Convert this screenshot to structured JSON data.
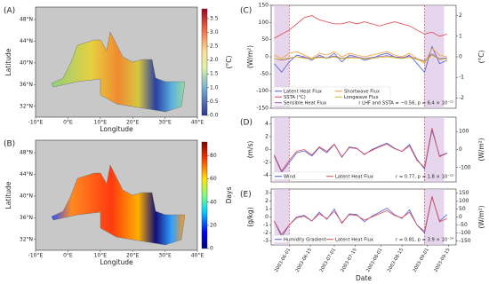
{
  "chart_data": [
    {
      "type": "map",
      "panel_label": "(A)",
      "xlabel": "Longitude",
      "ylabel": "Latitude",
      "xlim": [
        -10,
        40
      ],
      "ylim": [
        30,
        50.3
      ],
      "xticks": [
        {
          "value": -10,
          "label": "-10°E"
        },
        {
          "value": 0,
          "label": "0°E"
        },
        {
          "value": 10,
          "label": "10°E"
        },
        {
          "value": 20,
          "label": "20°E"
        },
        {
          "value": 30,
          "label": "30°E"
        },
        {
          "value": 40,
          "label": "40°E"
        }
      ],
      "yticks": [
        {
          "value": 32,
          "label": "32°N"
        },
        {
          "value": 36,
          "label": "36°N"
        },
        {
          "value": 40,
          "label": "40°N"
        },
        {
          "value": 44,
          "label": "44°N"
        },
        {
          "value": 48,
          "label": "48°N"
        }
      ],
      "colorbar": {
        "label": "(°C)",
        "lim": [
          0,
          3.85
        ],
        "ticks": [
          {
            "value": 0,
            "label": "0.0"
          },
          0.5,
          {
            "value": 1,
            "label": "1.0"
          },
          1.5,
          {
            "value": 2,
            "label": "2.0"
          },
          2.5,
          {
            "value": 3,
            "label": "3.0"
          },
          3.5
        ],
        "colormap": "redyellowblue"
      }
    },
    {
      "type": "map",
      "panel_label": "(B)",
      "xlabel": "Longitude",
      "ylabel": "Latitude",
      "xlim": [
        -10,
        40
      ],
      "ylim": [
        30,
        50.3
      ],
      "xticks": [
        {
          "value": -10,
          "label": "-10°E"
        },
        {
          "value": 0,
          "label": "0°E"
        },
        {
          "value": 10,
          "label": "10°E"
        },
        {
          "value": 20,
          "label": "20°E"
        },
        {
          "value": 30,
          "label": "30°E"
        },
        {
          "value": 40,
          "label": "40°E"
        }
      ],
      "yticks": [
        {
          "value": 32,
          "label": "32°N"
        },
        {
          "value": 36,
          "label": "36°N"
        },
        {
          "value": 40,
          "label": "40°N"
        },
        {
          "value": 44,
          "label": "44°N"
        },
        {
          "value": 48,
          "label": "48°N"
        }
      ],
      "colorbar": {
        "label": "Days",
        "lim": [
          0,
          92
        ],
        "ticks": [
          0,
          20,
          40,
          60,
          80
        ],
        "colormap": "jet"
      }
    },
    {
      "type": "line",
      "panel_label": "(C)",
      "ylabel": "(W/m²)",
      "y2label": "(°C)",
      "x": [
        "2003-05-22",
        "2003-05-27",
        "2003-06-01",
        "2003-06-06",
        "2003-06-11",
        "2003-06-16",
        "2003-06-21",
        "2003-06-26",
        "2003-07-01",
        "2003-07-06",
        "2003-07-11",
        "2003-07-16",
        "2003-07-21",
        "2003-07-26",
        "2003-07-31",
        "2003-08-05",
        "2003-08-10",
        "2003-08-15",
        "2003-08-20",
        "2003-08-25",
        "2003-08-30",
        "2003-09-04",
        "2003-09-09",
        "2003-09-14"
      ],
      "xlim": [
        "2003-05-20",
        "2003-09-20"
      ],
      "ylim": [
        -150,
        150
      ],
      "yticks": [
        -150,
        -100,
        -50,
        0,
        50,
        100,
        150
      ],
      "y2lim": [
        -2.5,
        2.5
      ],
      "y2ticks": [
        -2,
        -1,
        0,
        1,
        2
      ],
      "shaded_spans": [
        [
          "2003-05-22",
          "2003-06-01"
        ],
        [
          "2003-08-30",
          "2003-09-12"
        ]
      ],
      "series": [
        {
          "name": "Latent Heat Flux",
          "color": "#4f5fd8",
          "values": [
            -20,
            -45,
            -15,
            5,
            0,
            -10,
            5,
            -5,
            10,
            -15,
            5,
            0,
            -10,
            -5,
            5,
            10,
            0,
            -5,
            5,
            -20,
            -45,
            30,
            -20,
            -10
          ]
        },
        {
          "name": "SSTA (°C)",
          "color": "#e0474c",
          "axis": "y2",
          "values": [
            0.9,
            1.1,
            1.3,
            1.6,
            1.9,
            2.0,
            1.8,
            1.7,
            1.6,
            1.6,
            1.7,
            1.6,
            1.7,
            1.6,
            1.5,
            1.6,
            1.7,
            1.6,
            1.5,
            1.3,
            1.1,
            1.2,
            1.0,
            1.1
          ]
        },
        {
          "name": "Sensible Heat Flux",
          "color": "#9b59b6",
          "values": [
            -5,
            -10,
            -5,
            0,
            -2,
            -4,
            0,
            -3,
            2,
            -5,
            0,
            -1,
            -4,
            -2,
            1,
            3,
            0,
            -2,
            1,
            -6,
            -12,
            8,
            -6,
            -3
          ]
        },
        {
          "name": "Shortwave Flux",
          "color": "#f0a030",
          "values": [
            5,
            -5,
            10,
            15,
            5,
            -5,
            10,
            5,
            15,
            0,
            10,
            5,
            0,
            5,
            10,
            15,
            5,
            0,
            10,
            -5,
            -20,
            25,
            5,
            0
          ]
        },
        {
          "name": "Longwave Flux",
          "color": "#c8c020",
          "values": [
            -5,
            -8,
            -3,
            0,
            -5,
            -6,
            -2,
            -4,
            -1,
            -6,
            -3,
            -4,
            -6,
            -5,
            -2,
            0,
            -3,
            -5,
            -2,
            -8,
            -15,
            5,
            -8,
            -6
          ]
        }
      ],
      "annotation": "r LHF and SSTA = −0.56, p = 6.4 × 10⁻¹²"
    },
    {
      "type": "line",
      "panel_label": "(D)",
      "ylabel": "(m/s)",
      "y2label": "(W/m²)",
      "x": [
        "2003-05-22",
        "2003-05-27",
        "2003-06-01",
        "2003-06-06",
        "2003-06-11",
        "2003-06-16",
        "2003-06-21",
        "2003-06-26",
        "2003-07-01",
        "2003-07-06",
        "2003-07-11",
        "2003-07-16",
        "2003-07-21",
        "2003-07-26",
        "2003-07-31",
        "2003-08-05",
        "2003-08-10",
        "2003-08-15",
        "2003-08-20",
        "2003-08-25",
        "2003-08-30",
        "2003-09-04",
        "2003-09-09",
        "2003-09-14"
      ],
      "xlim": [
        "2003-05-20",
        "2003-09-20"
      ],
      "ylim": [
        -5,
        5
      ],
      "yticks": [
        -4,
        -2,
        0,
        2,
        4
      ],
      "y2lim": [
        -180,
        180
      ],
      "y2ticks": [
        -100,
        0,
        100
      ],
      "shaded_spans": [
        [
          "2003-05-22",
          "2003-06-01"
        ],
        [
          "2003-08-30",
          "2003-09-12"
        ]
      ],
      "series": [
        {
          "name": "Wind",
          "color": "#4f5fd8",
          "values": [
            -1,
            -3.5,
            -2,
            -0.5,
            -0.2,
            -1,
            0.3,
            -0.5,
            0.8,
            -1.2,
            0.4,
            0.2,
            -0.8,
            0,
            0.5,
            1,
            0.2,
            -0.3,
            0.8,
            -1.5,
            -3,
            3,
            -1,
            -0.5
          ]
        },
        {
          "name": "Latent Heat Flux",
          "color": "#e0474c",
          "axis": "y2",
          "values": [
            -30,
            -120,
            -60,
            -10,
            0,
            -30,
            15,
            -10,
            30,
            -40,
            10,
            5,
            -25,
            -5,
            15,
            30,
            5,
            -10,
            20,
            -60,
            -100,
            120,
            -40,
            -20
          ]
        }
      ],
      "annotation": "r = 0.77, p = 1.8 × 10⁻²³"
    },
    {
      "type": "line",
      "panel_label": "(E)",
      "ylabel": "(g/kg)",
      "y2label": "(W/m²)",
      "xlabel": "Date",
      "x": [
        "2003-05-22",
        "2003-05-27",
        "2003-06-01",
        "2003-06-06",
        "2003-06-11",
        "2003-06-16",
        "2003-06-21",
        "2003-06-26",
        "2003-07-01",
        "2003-07-06",
        "2003-07-11",
        "2003-07-16",
        "2003-07-21",
        "2003-07-26",
        "2003-07-31",
        "2003-08-05",
        "2003-08-10",
        "2003-08-15",
        "2003-08-20",
        "2003-08-25",
        "2003-08-30",
        "2003-09-04",
        "2003-09-09",
        "2003-09-14"
      ],
      "xlim": [
        "2003-05-20",
        "2003-09-20"
      ],
      "ylim": [
        -3.5,
        3.5
      ],
      "yticks": [
        -3,
        -2,
        -1,
        0,
        1,
        2,
        3
      ],
      "y2lim": [
        -175,
        175
      ],
      "y2ticks": [
        -150,
        -100,
        -50,
        0,
        50,
        100,
        150
      ],
      "xticks": [
        "2003-06-01",
        "2003-06-15",
        "2003-07-01",
        "2003-07-15",
        "2003-08-01",
        "2003-08-15",
        "2003-09-01",
        "2003-09-15"
      ],
      "shaded_spans": [
        [
          "2003-05-22",
          "2003-06-01"
        ],
        [
          "2003-08-30",
          "2003-09-12"
        ]
      ],
      "series": [
        {
          "name": "Humidity Gradient",
          "color": "#4f5fd8",
          "values": [
            -0.5,
            -2.5,
            -1,
            0,
            0.2,
            -0.5,
            0.6,
            -0.3,
            1,
            -0.8,
            0.4,
            0.3,
            -0.6,
            0.1,
            0.6,
            1.1,
            0.3,
            -0.2,
            0.9,
            -1,
            -2,
            2.5,
            -0.5,
            0.3
          ]
        },
        {
          "name": "Latent Heat Flux",
          "color": "#e0474c",
          "axis": "y2",
          "values": [
            -25,
            -110,
            -50,
            -5,
            5,
            -25,
            20,
            -10,
            35,
            -35,
            15,
            10,
            -20,
            0,
            20,
            40,
            10,
            -5,
            30,
            -50,
            -90,
            130,
            -30,
            -10
          ]
        }
      ],
      "annotation": "r = 0.81, p = 3.9 × 10⁻²⁹"
    }
  ]
}
